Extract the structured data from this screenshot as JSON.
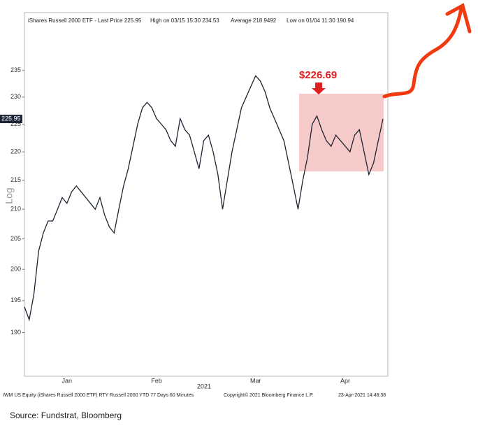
{
  "chart_data": {
    "type": "line",
    "header": [
      "iShares Russell 2000 ETF - Last Price 225.95",
      "High on 03/15 15:30 234.53",
      "Average 218.9492",
      "Low on 01/04 11:30 190.94"
    ],
    "ylabel": "Log",
    "xlabel": "2021",
    "last_price_label": "225.95",
    "annotation": "$226.69",
    "footer_left": "IWM US Equity (iShares Russell 2000 ETF) RTY Russell 2000 YTD 77 Days 60 Minutes",
    "footer_mid": "Copyright© 2021 Bloomberg Finance L.P.",
    "footer_right": "23-Apr-2021 14:48:38",
    "source": "Source: Fundstrat, Bloomberg",
    "log_scale": true,
    "grid": false,
    "ylim": [
      183.4,
      246.3
    ],
    "yticks": [
      190,
      195,
      200,
      205,
      210,
      215,
      220,
      225,
      230,
      235
    ],
    "categories": [
      null,
      null,
      null,
      null,
      null,
      null,
      null,
      null,
      null,
      "Jan",
      null,
      null,
      null,
      null,
      null,
      null,
      null,
      null,
      null,
      null,
      null,
      null,
      null,
      null,
      null,
      null,
      null,
      null,
      "Feb",
      null,
      null,
      null,
      null,
      null,
      null,
      null,
      null,
      null,
      null,
      null,
      null,
      null,
      null,
      null,
      null,
      null,
      null,
      null,
      null,
      "Mar",
      null,
      null,
      null,
      null,
      null,
      null,
      null,
      null,
      null,
      null,
      null,
      null,
      null,
      null,
      null,
      null,
      null,
      null,
      "Apr",
      null,
      null,
      null,
      null,
      null,
      null,
      null,
      null
    ],
    "series": [
      {
        "name": "iShares Russell 2000 ETF",
        "color": "#1c2433",
        "values": [
          194,
          192,
          196,
          203,
          206,
          208,
          208,
          210,
          212,
          211,
          213,
          214,
          213,
          212,
          211,
          210,
          212,
          209,
          207,
          206,
          210,
          214,
          217,
          221,
          225,
          228,
          229,
          228,
          226,
          225,
          224,
          222,
          221,
          226,
          224,
          223,
          220,
          217,
          222,
          223,
          220,
          216,
          210,
          215,
          220,
          224,
          228,
          230,
          232,
          234,
          233,
          231,
          228,
          226,
          224,
          222,
          218,
          214,
          210,
          215,
          219,
          225,
          226.5,
          224,
          222,
          221,
          223,
          222,
          221,
          220,
          223,
          224,
          220,
          216,
          218,
          222,
          225.95
        ]
      }
    ]
  }
}
